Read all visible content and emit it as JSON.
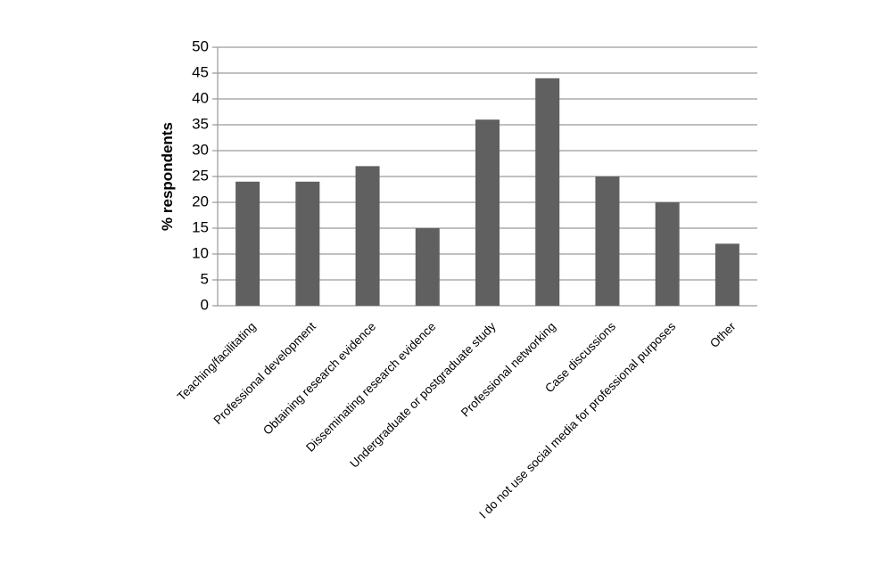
{
  "chart_data": {
    "type": "bar",
    "y_label": "% respondents",
    "categories": [
      "Teaching/facilitating",
      "Professional development",
      "Obtaining research evidence",
      "Disseminating research evidence",
      "Undergraduate or postgraduate study",
      "Professional networking",
      "Case discussions",
      "I do not use social media for professional purposes",
      "Other"
    ],
    "values": [
      24,
      24,
      27,
      15,
      36,
      44,
      25,
      20,
      12
    ],
    "color": "#606060",
    "ylim": [
      0,
      50
    ],
    "yticks": [
      0,
      5,
      10,
      15,
      20,
      25,
      30,
      35,
      40,
      45,
      50
    ],
    "grid": true
  }
}
